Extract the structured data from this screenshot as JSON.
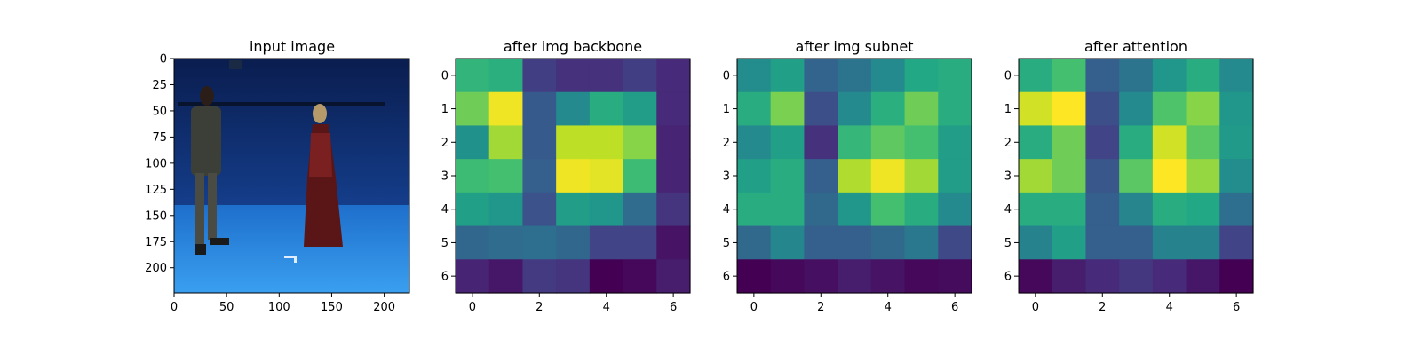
{
  "figure": {
    "background": "#ffffff"
  },
  "chart_data": [
    {
      "type": "image",
      "title": "input image",
      "xlim": [
        0,
        224
      ],
      "ylim": [
        224,
        0
      ],
      "xticks": [
        0,
        50,
        100,
        150,
        200
      ],
      "yticks": [
        0,
        25,
        50,
        75,
        100,
        125,
        150,
        175,
        200
      ],
      "description_colors": {
        "wall": "#0d2a6a",
        "floor": "#2a8be0",
        "person_left": "#3a3f37",
        "person_right": "#5a1616"
      }
    },
    {
      "type": "heatmap",
      "title": "after img backbone",
      "xticks": [
        0,
        2,
        4,
        6
      ],
      "yticks": [
        0,
        1,
        2,
        3,
        4,
        5,
        6
      ],
      "values": [
        [
          0.65,
          0.63,
          0.18,
          0.14,
          0.14,
          0.18,
          0.12
        ],
        [
          0.78,
          0.98,
          0.28,
          0.47,
          0.62,
          0.55,
          0.12
        ],
        [
          0.5,
          0.86,
          0.28,
          0.9,
          0.9,
          0.82,
          0.1
        ],
        [
          0.68,
          0.7,
          0.3,
          0.98,
          0.96,
          0.68,
          0.1
        ],
        [
          0.56,
          0.52,
          0.25,
          0.55,
          0.52,
          0.35,
          0.15
        ],
        [
          0.33,
          0.35,
          0.36,
          0.33,
          0.2,
          0.2,
          0.05
        ],
        [
          0.1,
          0.06,
          0.17,
          0.15,
          0.0,
          0.02,
          0.08
        ]
      ]
    },
    {
      "type": "heatmap",
      "title": "after img subnet",
      "xticks": [
        0,
        2,
        4,
        6
      ],
      "yticks": [
        0,
        1,
        2,
        3,
        4,
        5,
        6
      ],
      "values": [
        [
          0.48,
          0.56,
          0.32,
          0.38,
          0.47,
          0.6,
          0.62
        ],
        [
          0.62,
          0.8,
          0.24,
          0.47,
          0.63,
          0.78,
          0.62
        ],
        [
          0.47,
          0.56,
          0.14,
          0.66,
          0.75,
          0.7,
          0.55
        ],
        [
          0.56,
          0.62,
          0.3,
          0.88,
          0.98,
          0.86,
          0.55
        ],
        [
          0.62,
          0.62,
          0.34,
          0.52,
          0.7,
          0.62,
          0.47
        ],
        [
          0.34,
          0.46,
          0.3,
          0.3,
          0.34,
          0.4,
          0.22
        ],
        [
          0.0,
          0.02,
          0.04,
          0.08,
          0.05,
          0.02,
          0.03
        ]
      ]
    },
    {
      "type": "heatmap",
      "title": "after attention",
      "xticks": [
        0,
        2,
        4,
        6
      ],
      "yticks": [
        0,
        1,
        2,
        3,
        4,
        5,
        6
      ],
      "values": [
        [
          0.62,
          0.7,
          0.3,
          0.38,
          0.52,
          0.62,
          0.47
        ],
        [
          0.93,
          1.0,
          0.24,
          0.47,
          0.72,
          0.82,
          0.52
        ],
        [
          0.62,
          0.78,
          0.2,
          0.62,
          0.93,
          0.74,
          0.54
        ],
        [
          0.86,
          0.78,
          0.27,
          0.74,
          1.0,
          0.84,
          0.48
        ],
        [
          0.62,
          0.62,
          0.3,
          0.45,
          0.62,
          0.6,
          0.36
        ],
        [
          0.44,
          0.56,
          0.3,
          0.3,
          0.44,
          0.44,
          0.2
        ],
        [
          0.02,
          0.08,
          0.12,
          0.16,
          0.12,
          0.06,
          0.0
        ]
      ]
    }
  ]
}
